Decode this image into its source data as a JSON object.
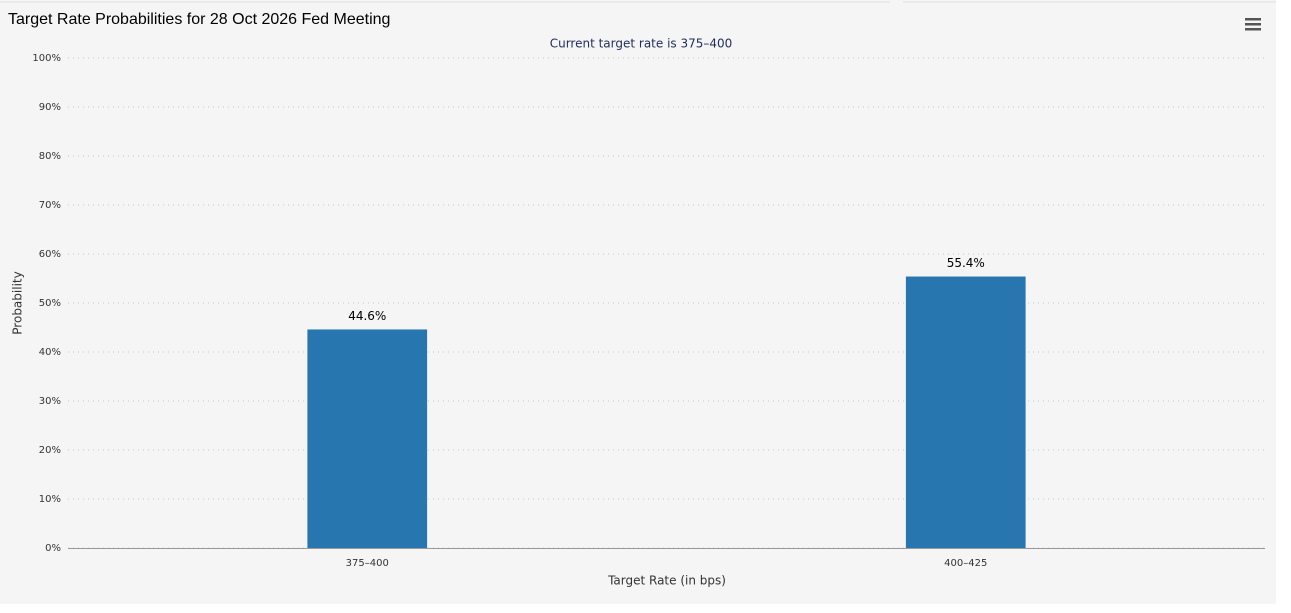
{
  "chart_data": {
    "type": "bar",
    "title": "Target Rate Probabilities for 28 Oct 2026 Fed Meeting",
    "subtitle": "Current target rate is 375–400",
    "x_label": "Target Rate (in bps)",
    "y_label": "Probability",
    "categories": [
      "375–400",
      "400–425"
    ],
    "values": [
      44.6,
      55.4
    ],
    "value_labels": [
      "44.6%",
      "55.4%"
    ],
    "color": "#2876b0",
    "ylim": [
      0,
      100
    ],
    "yticks": [
      {
        "value": 0,
        "label": "0%"
      },
      {
        "value": 10,
        "label": "10%"
      },
      {
        "value": 20,
        "label": "20%"
      },
      {
        "value": 30,
        "label": "30%"
      },
      {
        "value": 40,
        "label": "40%"
      },
      {
        "value": 50,
        "label": "50%"
      },
      {
        "value": 60,
        "label": "60%"
      },
      {
        "value": 70,
        "label": "70%"
      },
      {
        "value": 80,
        "label": "80%"
      },
      {
        "value": 90,
        "label": "90%"
      },
      {
        "value": 100,
        "label": "100%"
      }
    ],
    "grid": true
  }
}
